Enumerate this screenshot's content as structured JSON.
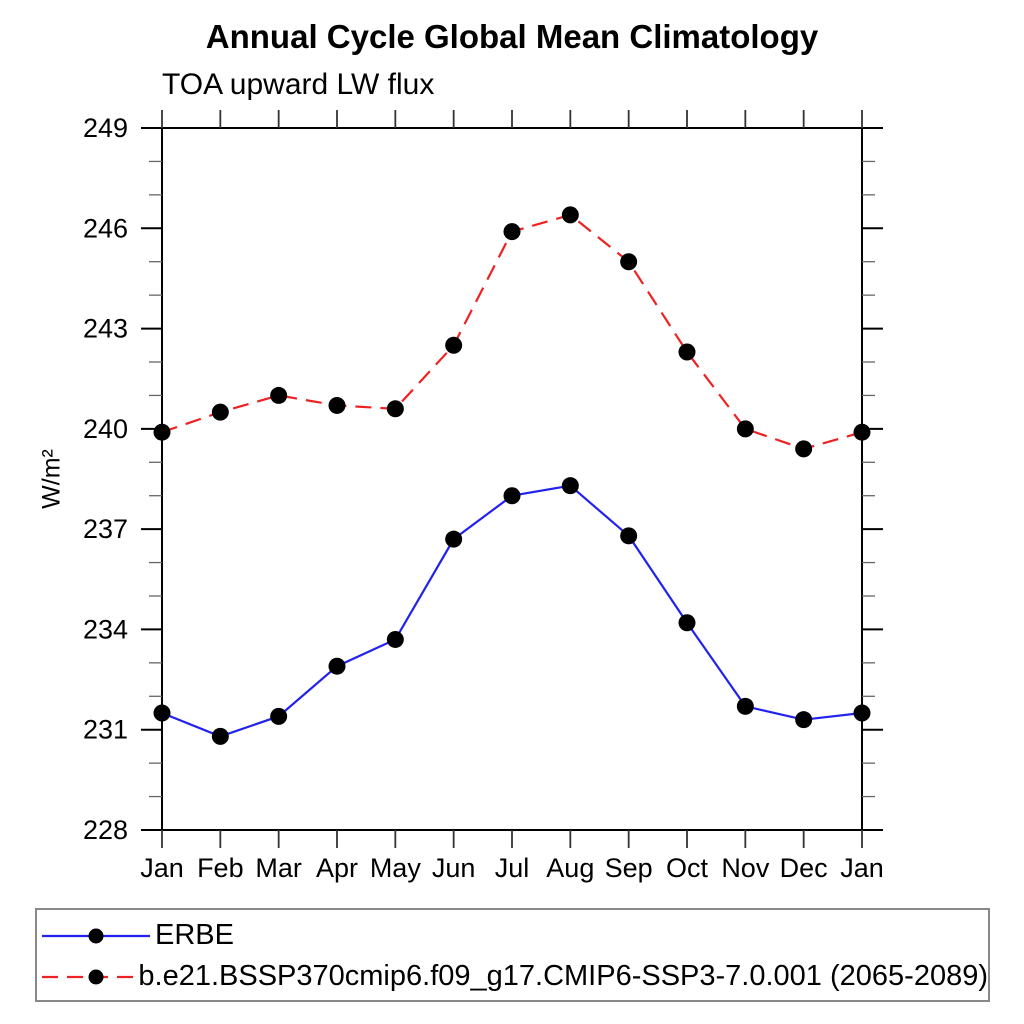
{
  "chart_data": {
    "type": "line",
    "title": "Annual Cycle Global Mean Climatology",
    "subtitle": "TOA upward LW flux",
    "xlabel": "",
    "ylabel": "W/m²",
    "x_tick_labels": [
      "Jan",
      "Feb",
      "Mar",
      "Apr",
      "May",
      "Jun",
      "Jul",
      "Aug",
      "Sep",
      "Oct",
      "Nov",
      "Dec",
      "Jan"
    ],
    "y_axis": {
      "min": 228,
      "max": 249,
      "major_step": 3,
      "minor_step": 1,
      "major_tick_labels": [
        "249",
        "246",
        "243",
        "240",
        "237",
        "234",
        "231",
        "228"
      ]
    },
    "grid": false,
    "legend_position": "bottom-left-box",
    "series": [
      {
        "name": "ERBE",
        "color": "#2222ee",
        "line_style": "solid",
        "marker": "filled-circle",
        "marker_color": "#000000",
        "values": [
          231.5,
          230.8,
          231.4,
          232.9,
          233.7,
          236.7,
          238.0,
          238.3,
          236.8,
          234.2,
          231.7,
          231.3,
          231.5
        ]
      },
      {
        "name": "b.e21.BSSP370cmip6.f09_g17.CMIP6-SSP3-7.0.001 (2065-2089)",
        "color": "#ee2222",
        "line_style": "dashed",
        "marker": "filled-circle",
        "marker_color": "#000000",
        "values": [
          239.9,
          240.5,
          241.0,
          240.7,
          240.6,
          242.5,
          245.9,
          246.4,
          245.0,
          242.3,
          240.0,
          239.4,
          239.9
        ]
      }
    ]
  }
}
